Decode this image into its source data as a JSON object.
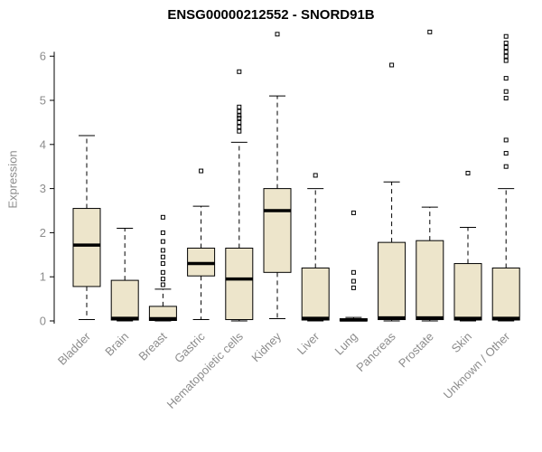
{
  "chart_data": {
    "type": "boxplot",
    "title": "ENSG00000212552 - SNORD91B",
    "ylabel": "Expression",
    "ylim": [
      -0.15,
      6.7
    ],
    "yticks": [
      0,
      1,
      2,
      3,
      4,
      5,
      6
    ],
    "grid": false,
    "legend": "none",
    "box_fill": "#EDE5CB",
    "box_stroke": "#000000",
    "whisker_style": "dashed",
    "axis_text_color": "#8c8c8c",
    "categories": [
      "Bladder",
      "Brain",
      "Breast",
      "Gastric",
      "Hematopoietic cells",
      "Kidney",
      "Liver",
      "Lung",
      "Pancreas",
      "Prostate",
      "Skin",
      "Unknown / Other"
    ],
    "series": [
      {
        "category": "Bladder",
        "low": 0.03,
        "q1": 0.78,
        "median": 1.72,
        "q3": 2.55,
        "high": 4.2,
        "outliers": []
      },
      {
        "category": "Brain",
        "low": 0,
        "q1": 0.02,
        "median": 0.06,
        "q3": 0.92,
        "high": 2.1,
        "outliers": []
      },
      {
        "category": "Breast",
        "low": 0,
        "q1": 0.01,
        "median": 0.05,
        "q3": 0.33,
        "high": 0.72,
        "outliers": [
          0.82,
          0.95,
          1.1,
          1.3,
          1.45,
          1.6,
          1.8,
          2.0,
          2.35
        ]
      },
      {
        "category": "Gastric",
        "low": 0.03,
        "q1": 1.02,
        "median": 1.3,
        "q3": 1.65,
        "high": 2.6,
        "outliers": [
          3.4
        ]
      },
      {
        "category": "Hematopoietic cells",
        "low": 0,
        "q1": 0.03,
        "median": 0.95,
        "q3": 1.65,
        "high": 4.05,
        "outliers": [
          4.3,
          4.4,
          4.5,
          4.6,
          4.65,
          4.75,
          4.85,
          5.65
        ]
      },
      {
        "category": "Kidney",
        "low": 0.05,
        "q1": 1.1,
        "median": 2.5,
        "q3": 3.0,
        "high": 5.1,
        "outliers": [
          6.5
        ]
      },
      {
        "category": "Liver",
        "low": 0,
        "q1": 0.02,
        "median": 0.06,
        "q3": 1.2,
        "high": 3.0,
        "outliers": [
          3.3
        ]
      },
      {
        "category": "Lung",
        "low": 0,
        "q1": 0.0,
        "median": 0.02,
        "q3": 0.05,
        "high": 0.08,
        "outliers": [
          0.75,
          0.9,
          1.1,
          2.45
        ]
      },
      {
        "category": "Pancreas",
        "low": 0,
        "q1": 0.03,
        "median": 0.07,
        "q3": 1.78,
        "high": 3.15,
        "outliers": [
          5.8
        ]
      },
      {
        "category": "Prostate",
        "low": 0,
        "q1": 0.03,
        "median": 0.07,
        "q3": 1.82,
        "high": 2.58,
        "outliers": [
          6.55
        ]
      },
      {
        "category": "Skin",
        "low": 0,
        "q1": 0.02,
        "median": 0.06,
        "q3": 1.3,
        "high": 2.12,
        "outliers": [
          3.35
        ]
      },
      {
        "category": "Unknown / Other",
        "low": 0,
        "q1": 0.02,
        "median": 0.06,
        "q3": 1.2,
        "high": 3.0,
        "outliers": [
          3.5,
          3.8,
          4.1,
          5.05,
          5.2,
          5.5,
          5.9,
          6.0,
          6.1,
          6.2,
          6.3,
          6.45
        ]
      }
    ]
  }
}
